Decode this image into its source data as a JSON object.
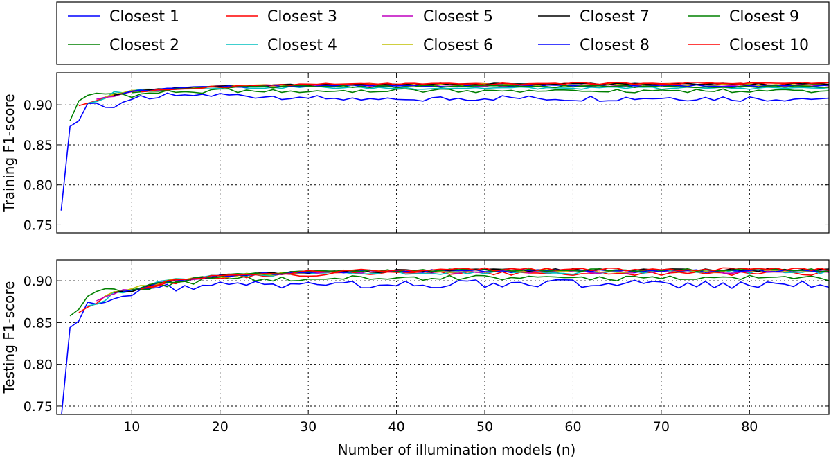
{
  "chart_data": [
    {
      "type": "line",
      "panel": "top",
      "ylabel": "Training F1-score",
      "xlabel": "",
      "xlim": [
        1.5,
        89
      ],
      "ylim": [
        0.74,
        0.94
      ],
      "xticks": [
        10,
        20,
        30,
        40,
        50,
        60,
        70,
        80
      ],
      "xtick_labels": [
        "",
        "",
        "",
        "",
        "",
        "",
        "",
        ""
      ],
      "yticks": [
        0.75,
        0.8,
        0.85,
        0.9
      ],
      "ytick_labels": [
        "0.75",
        "0.80",
        "0.85",
        "0.90"
      ],
      "grid": true,
      "x_start": 2,
      "series_summary": [
        {
          "name": "Closest 1",
          "color": "#0000ff",
          "x": [
            2,
            3,
            4,
            5,
            6,
            8,
            10,
            14,
            20,
            30,
            40,
            50,
            60,
            70,
            80,
            89
          ],
          "y": [
            0.768,
            0.873,
            0.881,
            0.902,
            0.901,
            0.898,
            0.908,
            0.912,
            0.912,
            0.91,
            0.906,
            0.909,
            0.908,
            0.909,
            0.908,
            0.908
          ]
        },
        {
          "name": "Closest 2",
          "color": "#008000",
          "x": [
            3,
            4,
            5,
            6,
            8,
            10,
            14,
            20,
            30,
            40,
            50,
            60,
            70,
            80,
            89
          ],
          "y": [
            0.88,
            0.905,
            0.91,
            0.913,
            0.914,
            0.912,
            0.916,
            0.918,
            0.917,
            0.918,
            0.918,
            0.918,
            0.918,
            0.918,
            0.917
          ]
        },
        {
          "name": "Closest 3",
          "color": "#ff0000",
          "x": [
            4,
            6,
            8,
            10,
            14,
            20,
            30,
            40,
            50,
            60,
            70,
            80,
            89
          ],
          "y": [
            0.899,
            0.905,
            0.912,
            0.917,
            0.919,
            0.923,
            0.925,
            0.926,
            0.926,
            0.926,
            0.926,
            0.926,
            0.926
          ]
        },
        {
          "name": "Closest 4",
          "color": "#00bfbf",
          "x": [
            5,
            6,
            8,
            10,
            14,
            20,
            30,
            40,
            50,
            60,
            70,
            80,
            89
          ],
          "y": [
            0.902,
            0.904,
            0.915,
            0.918,
            0.92,
            0.922,
            0.922,
            0.921,
            0.921,
            0.921,
            0.921,
            0.921,
            0.921
          ]
        },
        {
          "name": "Closest 5",
          "color": "#bf00bf",
          "x": [
            6,
            8,
            10,
            14,
            20,
            30,
            40,
            50,
            60,
            70,
            80,
            89
          ],
          "y": [
            0.907,
            0.912,
            0.916,
            0.92,
            0.923,
            0.924,
            0.924,
            0.924,
            0.924,
            0.924,
            0.924,
            0.924
          ]
        },
        {
          "name": "Closest 6",
          "color": "#bfbf00",
          "x": [
            7,
            8,
            10,
            14,
            20,
            30,
            40,
            50,
            60,
            70,
            80,
            89
          ],
          "y": [
            0.91,
            0.913,
            0.917,
            0.92,
            0.923,
            0.925,
            0.925,
            0.925,
            0.925,
            0.925,
            0.925,
            0.925
          ]
        },
        {
          "name": "Closest 7",
          "color": "#000000",
          "x": [
            8,
            10,
            14,
            20,
            30,
            40,
            50,
            60,
            70,
            80,
            89
          ],
          "y": [
            0.912,
            0.916,
            0.92,
            0.923,
            0.925,
            0.926,
            0.926,
            0.926,
            0.926,
            0.926,
            0.926
          ]
        },
        {
          "name": "Closest 8",
          "color": "#0000ff",
          "x": [
            9,
            10,
            14,
            20,
            30,
            40,
            50,
            60,
            70,
            80,
            89
          ],
          "y": [
            0.914,
            0.917,
            0.92,
            0.923,
            0.924,
            0.924,
            0.924,
            0.924,
            0.924,
            0.924,
            0.924
          ]
        },
        {
          "name": "Closest 9",
          "color": "#008000",
          "x": [
            10,
            14,
            20,
            30,
            40,
            50,
            60,
            70,
            80,
            89
          ],
          "y": [
            0.915,
            0.919,
            0.922,
            0.923,
            0.923,
            0.923,
            0.923,
            0.923,
            0.923,
            0.923
          ]
        },
        {
          "name": "Closest 10",
          "color": "#ff0000",
          "x": [
            11,
            14,
            20,
            30,
            40,
            50,
            60,
            70,
            80,
            89
          ],
          "y": [
            0.916,
            0.919,
            0.923,
            0.926,
            0.926,
            0.926,
            0.927,
            0.927,
            0.927,
            0.927
          ]
        }
      ]
    },
    {
      "type": "line",
      "panel": "bottom",
      "ylabel": "Testing F1-score",
      "xlabel": "Number  of illumination models (n)",
      "xlim": [
        1.5,
        89
      ],
      "ylim": [
        0.74,
        0.925
      ],
      "xticks": [
        10,
        20,
        30,
        40,
        50,
        60,
        70,
        80
      ],
      "xtick_labels": [
        "10",
        "20",
        "30",
        "40",
        "50",
        "60",
        "70",
        "80"
      ],
      "yticks": [
        0.75,
        0.8,
        0.85,
        0.9
      ],
      "ytick_labels": [
        "0.75",
        "0.80",
        "0.85",
        "0.90"
      ],
      "grid": true,
      "x_start": 2,
      "series_summary": [
        {
          "name": "Closest 1",
          "color": "#0000ff",
          "x": [
            2,
            3,
            4,
            5,
            6,
            8,
            10,
            14,
            20,
            30,
            40,
            50,
            60,
            70,
            80,
            89
          ],
          "y": [
            0.735,
            0.844,
            0.857,
            0.872,
            0.878,
            0.88,
            0.885,
            0.893,
            0.895,
            0.896,
            0.897,
            0.897,
            0.897,
            0.897,
            0.896,
            0.896
          ]
        },
        {
          "name": "Closest 2",
          "color": "#008000",
          "x": [
            3,
            4,
            5,
            6,
            8,
            10,
            14,
            20,
            30,
            40,
            50,
            60,
            70,
            80,
            89
          ],
          "y": [
            0.858,
            0.866,
            0.88,
            0.89,
            0.889,
            0.89,
            0.896,
            0.903,
            0.904,
            0.904,
            0.904,
            0.904,
            0.904,
            0.904,
            0.904
          ]
        },
        {
          "name": "Closest 3",
          "color": "#ff0000",
          "x": [
            4,
            6,
            8,
            10,
            14,
            20,
            30,
            40,
            50,
            60,
            70,
            80,
            89
          ],
          "y": [
            0.862,
            0.875,
            0.887,
            0.889,
            0.897,
            0.905,
            0.908,
            0.909,
            0.909,
            0.909,
            0.909,
            0.909,
            0.909
          ]
        },
        {
          "name": "Closest 4",
          "color": "#00bfbf",
          "x": [
            5,
            6,
            8,
            10,
            14,
            20,
            30,
            40,
            50,
            60,
            70,
            80,
            89
          ],
          "y": [
            0.87,
            0.872,
            0.885,
            0.89,
            0.9,
            0.907,
            0.909,
            0.91,
            0.91,
            0.91,
            0.911,
            0.911,
            0.911
          ]
        },
        {
          "name": "Closest 5",
          "color": "#bf00bf",
          "x": [
            6,
            8,
            10,
            14,
            20,
            30,
            40,
            50,
            60,
            70,
            80,
            89
          ],
          "y": [
            0.876,
            0.886,
            0.891,
            0.899,
            0.906,
            0.91,
            0.911,
            0.911,
            0.911,
            0.911,
            0.911,
            0.911
          ]
        },
        {
          "name": "Closest 6",
          "color": "#bfbf00",
          "x": [
            7,
            8,
            10,
            14,
            20,
            30,
            40,
            50,
            60,
            70,
            80,
            89
          ],
          "y": [
            0.882,
            0.887,
            0.891,
            0.9,
            0.906,
            0.911,
            0.912,
            0.912,
            0.912,
            0.912,
            0.912,
            0.912
          ]
        },
        {
          "name": "Closest 7",
          "color": "#000000",
          "x": [
            8,
            10,
            14,
            20,
            30,
            40,
            50,
            60,
            70,
            80,
            89
          ],
          "y": [
            0.886,
            0.889,
            0.899,
            0.906,
            0.911,
            0.912,
            0.913,
            0.913,
            0.913,
            0.913,
            0.913
          ]
        },
        {
          "name": "Closest 8",
          "color": "#0000ff",
          "x": [
            9,
            10,
            14,
            20,
            30,
            40,
            50,
            60,
            70,
            80,
            89
          ],
          "y": [
            0.887,
            0.889,
            0.899,
            0.906,
            0.911,
            0.912,
            0.912,
            0.912,
            0.912,
            0.912,
            0.912
          ]
        },
        {
          "name": "Closest 9",
          "color": "#008000",
          "x": [
            10,
            14,
            20,
            30,
            40,
            50,
            60,
            70,
            80,
            89
          ],
          "y": [
            0.889,
            0.899,
            0.906,
            0.911,
            0.912,
            0.913,
            0.913,
            0.913,
            0.913,
            0.913
          ]
        },
        {
          "name": "Closest 10",
          "color": "#ff0000",
          "x": [
            11,
            14,
            20,
            30,
            40,
            50,
            60,
            70,
            80,
            89
          ],
          "y": [
            0.89,
            0.899,
            0.906,
            0.911,
            0.913,
            0.914,
            0.914,
            0.914,
            0.914,
            0.914
          ]
        }
      ]
    }
  ],
  "legend": {
    "placement": "top",
    "entries": [
      {
        "label": "Closest 1",
        "color": "#0000ff"
      },
      {
        "label": "Closest 3",
        "color": "#ff0000"
      },
      {
        "label": "Closest 5",
        "color": "#bf00bf"
      },
      {
        "label": "Closest 7",
        "color": "#000000"
      },
      {
        "label": "Closest 9",
        "color": "#008000"
      },
      {
        "label": "Closest 2",
        "color": "#008000"
      },
      {
        "label": "Closest 4",
        "color": "#00bfbf"
      },
      {
        "label": "Closest 6",
        "color": "#bfbf00"
      },
      {
        "label": "Closest 8",
        "color": "#0000ff"
      },
      {
        "label": "Closest 10",
        "color": "#ff0000"
      }
    ]
  }
}
